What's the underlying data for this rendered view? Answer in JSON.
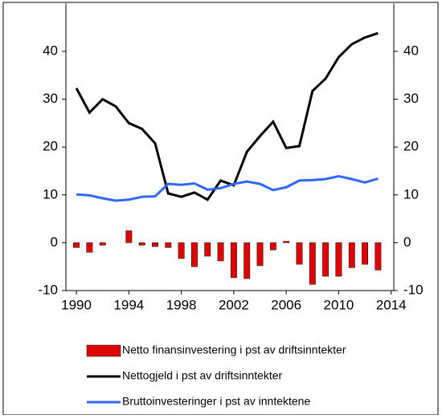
{
  "chart_data": {
    "type": "bar-line",
    "x": [
      1990,
      1991,
      1992,
      1993,
      1994,
      1995,
      1996,
      1997,
      1998,
      1999,
      2000,
      2001,
      2002,
      2003,
      2004,
      2005,
      2006,
      2007,
      2008,
      2009,
      2010,
      2011,
      2012,
      2013
    ],
    "series": [
      {
        "name": "Netto finansinvestering i pst av driftsinntekter",
        "type": "bar",
        "color": "#e00000",
        "values": [
          -1,
          -2,
          -0.5,
          0,
          2.5,
          -0.5,
          -0.8,
          -1,
          -3.3,
          -5,
          -2.8,
          -3.8,
          -7.3,
          -7.5,
          -4.8,
          -1.5,
          0.3,
          -4.5,
          -8.7,
          -7,
          -7,
          -5.2,
          -4.5,
          -5.7
        ]
      },
      {
        "name": "Nettogjeld i pst av driftsinntekter",
        "type": "line",
        "color": "#000000",
        "values": [
          32.3,
          27.2,
          30,
          28.5,
          25,
          23.8,
          20.8,
          10.3,
          9.6,
          10.5,
          9,
          13,
          12,
          19,
          22.3,
          25.3,
          19.8,
          20.2,
          31.7,
          34.3,
          38.8,
          41.5,
          42.9,
          43.8
        ]
      },
      {
        "name": "Bruttoinvesteringer i pst av inntektene",
        "type": "line",
        "color": "#3366ff",
        "values": [
          10.1,
          9.9,
          9.3,
          8.8,
          9,
          9.6,
          9.7,
          12.3,
          12.1,
          12.4,
          11.1,
          11.4,
          12.3,
          12.8,
          12.3,
          11,
          11.6,
          13,
          13.1,
          13.3,
          13.9,
          13.3,
          12.6,
          13.4
        ]
      }
    ],
    "xlim": [
      1989.2,
      2014.2
    ],
    "xticks": [
      1990,
      1994,
      1998,
      2002,
      2006,
      2010,
      2014
    ],
    "ylim": [
      -10,
      50
    ],
    "yticks": [
      -10,
      0,
      10,
      20,
      30,
      40
    ],
    "y2lim": [
      -10,
      50
    ],
    "y2ticks": [
      -10,
      0,
      10,
      20,
      30,
      40
    ]
  }
}
